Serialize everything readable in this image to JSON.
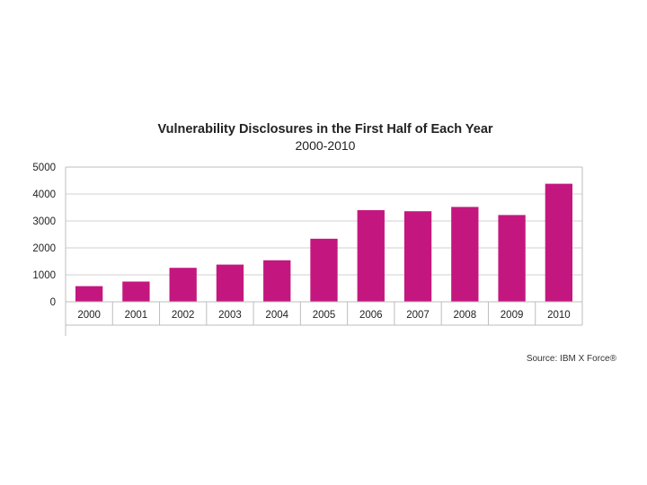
{
  "chart_data": {
    "type": "bar",
    "title": "Vulnerability Disclosures in the First Half of Each Year",
    "subtitle": "2000-2010",
    "categories": [
      "2000",
      "2001",
      "2002",
      "2003",
      "2004",
      "2005",
      "2006",
      "2007",
      "2008",
      "2009",
      "2010"
    ],
    "values": [
      580,
      750,
      1260,
      1380,
      1540,
      2340,
      3400,
      3360,
      3520,
      3220,
      4380
    ],
    "ylim": [
      0,
      5000
    ],
    "yticks": [
      "0",
      "1000",
      "2000",
      "3000",
      "4000",
      "5000"
    ],
    "xlabel": "",
    "ylabel": "",
    "grid": true,
    "bar_color": "#c3177f",
    "source": "Source: IBM X Force®"
  }
}
